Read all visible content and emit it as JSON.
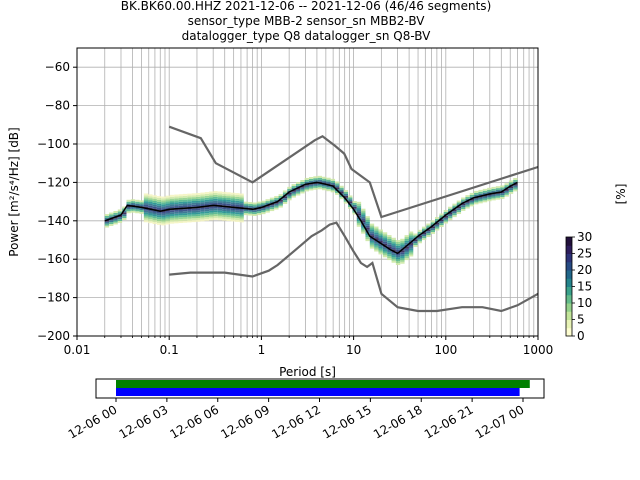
{
  "title_lines": [
    "BK.BK60.00.HHZ   2021-12-06 -- 2021-12-06  (46/46 segments)",
    "sensor_type MBB-2 sensor_sn MBB2-BV",
    "datalogger_type Q8 datalogger_sn Q8-BV"
  ],
  "chart_data": [
    {
      "type": "heatmap",
      "xlabel": "Period [s]",
      "ylabel": "Power [m²/s⁴/Hz] [dB]",
      "x_scale": "log",
      "xlim": [
        0.01,
        1000
      ],
      "ylim": [
        -200,
        -50
      ],
      "x_ticks": [
        "0.01",
        "0.1",
        "1",
        "10",
        "100",
        "1000"
      ],
      "y_ticks": [
        -60,
        -80,
        -100,
        -120,
        -140,
        -160,
        -180,
        -200
      ],
      "grid": true,
      "colorbar": {
        "label": "[%]",
        "ticks": [
          0,
          5,
          10,
          15,
          20,
          25,
          30
        ],
        "range": [
          0,
          30
        ]
      },
      "series": [
        {
          "role": "mean",
          "color": "#000000",
          "points": [
            [
              0.02,
              -140
            ],
            [
              0.03,
              -137
            ],
            [
              0.035,
              -132
            ],
            [
              0.05,
              -133
            ],
            [
              0.08,
              -135
            ],
            [
              0.1,
              -134
            ],
            [
              0.2,
              -133
            ],
            [
              0.3,
              -132
            ],
            [
              0.5,
              -133
            ],
            [
              0.8,
              -134
            ],
            [
              1,
              -133
            ],
            [
              1.5,
              -130
            ],
            [
              2,
              -125
            ],
            [
              3,
              -121
            ],
            [
              4,
              -120
            ],
            [
              5,
              -121
            ],
            [
              6,
              -122
            ],
            [
              8,
              -128
            ],
            [
              10,
              -134
            ],
            [
              12,
              -140
            ],
            [
              15,
              -148
            ],
            [
              20,
              -152
            ],
            [
              25,
              -155
            ],
            [
              30,
              -157
            ],
            [
              40,
              -152
            ],
            [
              50,
              -148
            ],
            [
              70,
              -143
            ],
            [
              100,
              -137
            ],
            [
              150,
              -131
            ],
            [
              200,
              -128
            ],
            [
              300,
              -126
            ],
            [
              400,
              -125
            ],
            [
              500,
              -122
            ],
            [
              600,
              -120
            ]
          ]
        },
        {
          "role": "noise-model-high",
          "color": "#666666",
          "points": [
            [
              0.1,
              -91
            ],
            [
              0.22,
              -97
            ],
            [
              0.32,
              -110
            ],
            [
              0.8,
              -120
            ],
            [
              3.8,
              -98
            ],
            [
              4.6,
              -96
            ],
            [
              6.3,
              -101
            ],
            [
              7.9,
              -105
            ],
            [
              9.5,
              -113
            ],
            [
              15,
              -120
            ],
            [
              20,
              -138
            ],
            [
              1000,
              -112
            ]
          ]
        },
        {
          "role": "noise-model-low",
          "color": "#666666",
          "points": [
            [
              0.1,
              -168
            ],
            [
              0.17,
              -167
            ],
            [
              0.4,
              -167
            ],
            [
              0.8,
              -169
            ],
            [
              1.2,
              -166
            ],
            [
              1.5,
              -163
            ],
            [
              2.5,
              -154
            ],
            [
              3.5,
              -148
            ],
            [
              4.5,
              -145
            ],
            [
              5.5,
              -142
            ],
            [
              6.5,
              -141
            ],
            [
              8,
              -148
            ],
            [
              10,
              -156
            ],
            [
              12,
              -162
            ],
            [
              14,
              -164
            ],
            [
              16,
              -162
            ],
            [
              20,
              -178
            ],
            [
              30,
              -185
            ],
            [
              50,
              -187
            ],
            [
              80,
              -187
            ],
            [
              150,
              -185
            ],
            [
              250,
              -185
            ],
            [
              400,
              -187
            ],
            [
              600,
              -184
            ],
            [
              1000,
              -178
            ]
          ]
        }
      ]
    },
    {
      "type": "bar",
      "x_ticks": [
        "12-06 00",
        "12-06 03",
        "12-06 06",
        "12-06 09",
        "12-06 12",
        "12-06 15",
        "12-06 18",
        "12-06 21",
        "12-07 00"
      ],
      "series": [
        {
          "name": "",
          "color": "#008000",
          "start_hours": 0,
          "end_hours": 24.4
        },
        {
          "name": "",
          "color": "#0000ff",
          "start_hours": 0,
          "end_hours": 23.8
        }
      ]
    }
  ]
}
